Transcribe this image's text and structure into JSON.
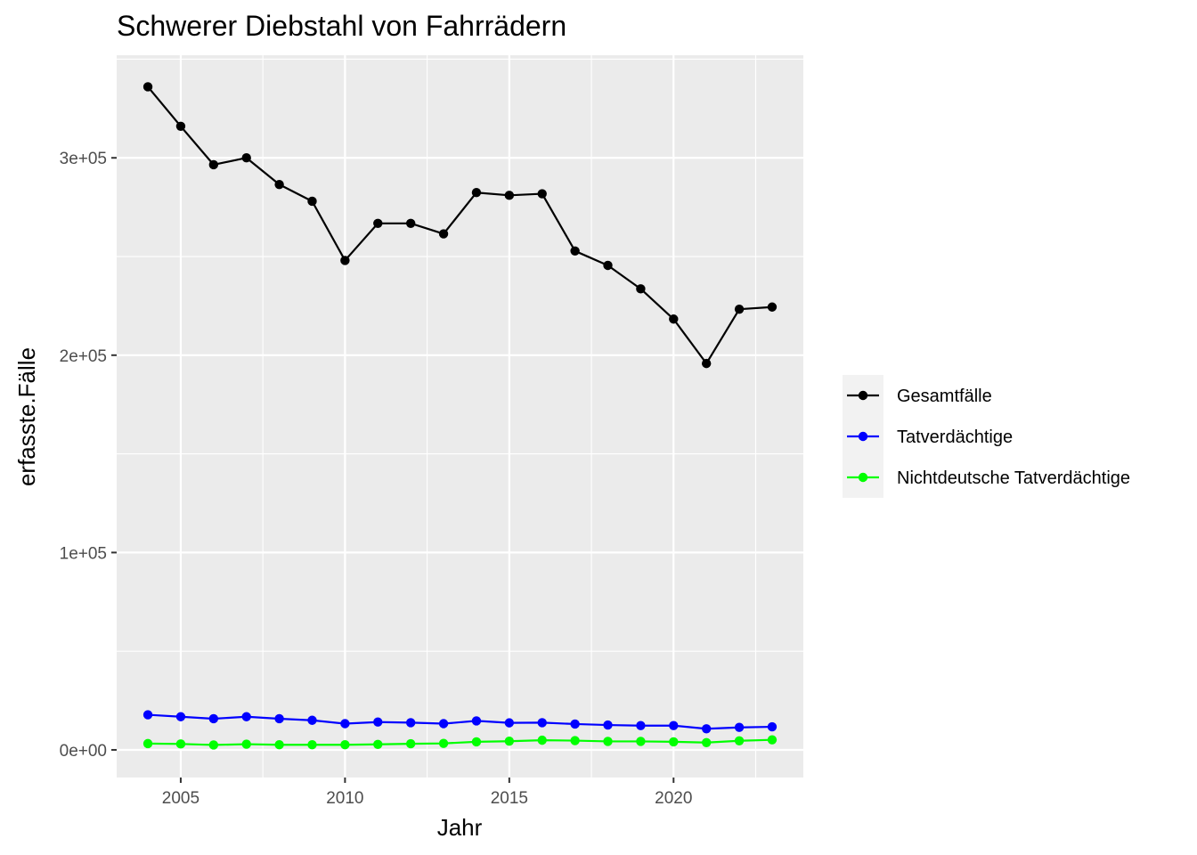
{
  "chart_data": {
    "type": "line",
    "title": "Schwerer Diebstahl von Fahrrädern",
    "xlabel": "Jahr",
    "ylabel": "erfasste.Fälle",
    "xlim": [
      2003.05,
      2023.95
    ],
    "ylim": [
      -14000,
      352000
    ],
    "x_ticks": [
      2005,
      2010,
      2015,
      2020
    ],
    "y_ticks": [
      {
        "value": 0,
        "label": "0e+00"
      },
      {
        "value": 100000,
        "label": "1e+05"
      },
      {
        "value": 200000,
        "label": "2e+05"
      },
      {
        "value": 300000,
        "label": "3e+05"
      }
    ],
    "grid": true,
    "legend_position": "right",
    "x": [
      2004,
      2005,
      2006,
      2007,
      2008,
      2009,
      2010,
      2011,
      2012,
      2013,
      2014,
      2015,
      2016,
      2017,
      2018,
      2019,
      2020,
      2021,
      2022,
      2023
    ],
    "series": [
      {
        "name": "Gesamtfälle",
        "color": "#000000",
        "values": [
          336000,
          316000,
          296500,
          300000,
          286500,
          278000,
          248000,
          266800,
          266800,
          261500,
          282400,
          281000,
          281800,
          252800,
          245500,
          233600,
          218300,
          195800,
          223300,
          224400
        ]
      },
      {
        "name": "Tatverdächtige",
        "color": "#0000ff",
        "values": [
          17800,
          16800,
          15800,
          16800,
          15800,
          15000,
          13300,
          14100,
          13800,
          13300,
          14700,
          13700,
          13800,
          13100,
          12600,
          12300,
          12300,
          10700,
          11400,
          11700
        ]
      },
      {
        "name": "Nichtdeutsche Tatverdächtige",
        "color": "#00ff00",
        "values": [
          3200,
          3000,
          2500,
          2900,
          2600,
          2600,
          2600,
          2800,
          3100,
          3300,
          4100,
          4400,
          4900,
          4700,
          4300,
          4300,
          4100,
          3700,
          4600,
          5100
        ]
      }
    ]
  }
}
